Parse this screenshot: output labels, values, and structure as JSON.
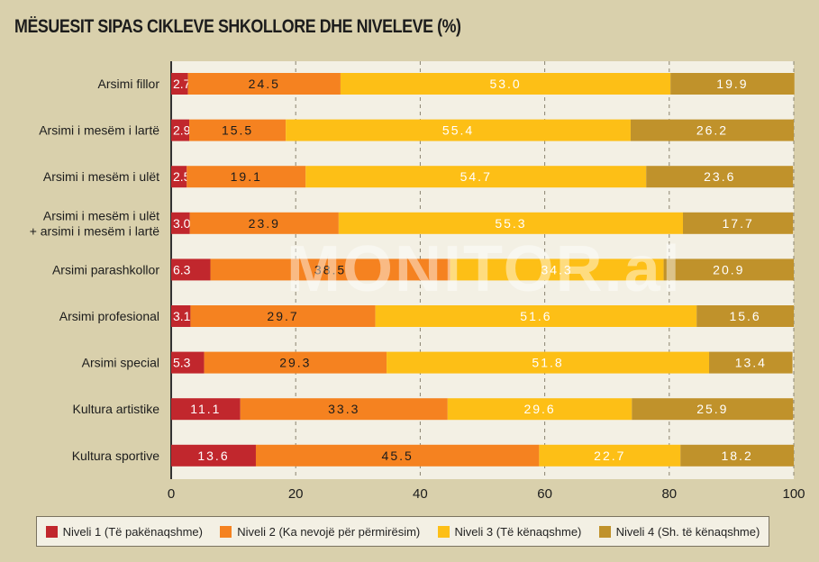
{
  "title": "MËSUESIT SIPAS CIKLEVE SHKOLLORE DHE NIVELEVE (%)",
  "watermark": "MONITOR.al",
  "chart_data": {
    "type": "bar",
    "stacked": true,
    "orientation": "horizontal",
    "title": "MËSUESIT SIPAS CIKLEVE SHKOLLORE DHE NIVELEVE (%)",
    "categories": [
      "Arsimi fillor",
      "Arsimi i mesëm i lartë",
      "Arsimi i mesëm i ulët",
      "Arsimi i mesëm i ulët\n+ arsimi i mesëm i lartë",
      "Arsimi parashkollor",
      "Arsimi profesional",
      "Arsimi special",
      "Kultura artistike",
      "Kultura sportive"
    ],
    "series": [
      {
        "name": "Niveli 1 (Të pakënaqshme)",
        "color": "#c1272d",
        "label_color": "#ffffff",
        "values": [
          2.7,
          2.9,
          2.5,
          3.0,
          6.3,
          3.1,
          5.3,
          11.1,
          13.6
        ]
      },
      {
        "name": "Niveli 2 (Ka nevojë për përmirësim)",
        "color": "#f58220",
        "label_color": "#1c1c1c",
        "values": [
          24.5,
          15.5,
          19.1,
          23.9,
          38.5,
          29.7,
          29.3,
          33.3,
          45.5
        ]
      },
      {
        "name": "Niveli 3 (Të kënaqshme)",
        "color": "#fdbf16",
        "label_color": "#ffffff",
        "values": [
          53.0,
          55.4,
          54.7,
          55.3,
          34.3,
          51.6,
          51.8,
          29.6,
          22.7
        ]
      },
      {
        "name": "Niveli 4 (Sh. të kënaqshme)",
        "color": "#c0922b",
        "label_color": "#ffffff",
        "values": [
          19.9,
          26.2,
          23.6,
          17.7,
          20.9,
          15.6,
          13.4,
          25.9,
          18.2
        ]
      }
    ],
    "xlim": [
      0,
      100
    ],
    "xticks": [
      0,
      20,
      40,
      60,
      80,
      100
    ],
    "grid": "vertical dashed",
    "legend": "bottom"
  }
}
